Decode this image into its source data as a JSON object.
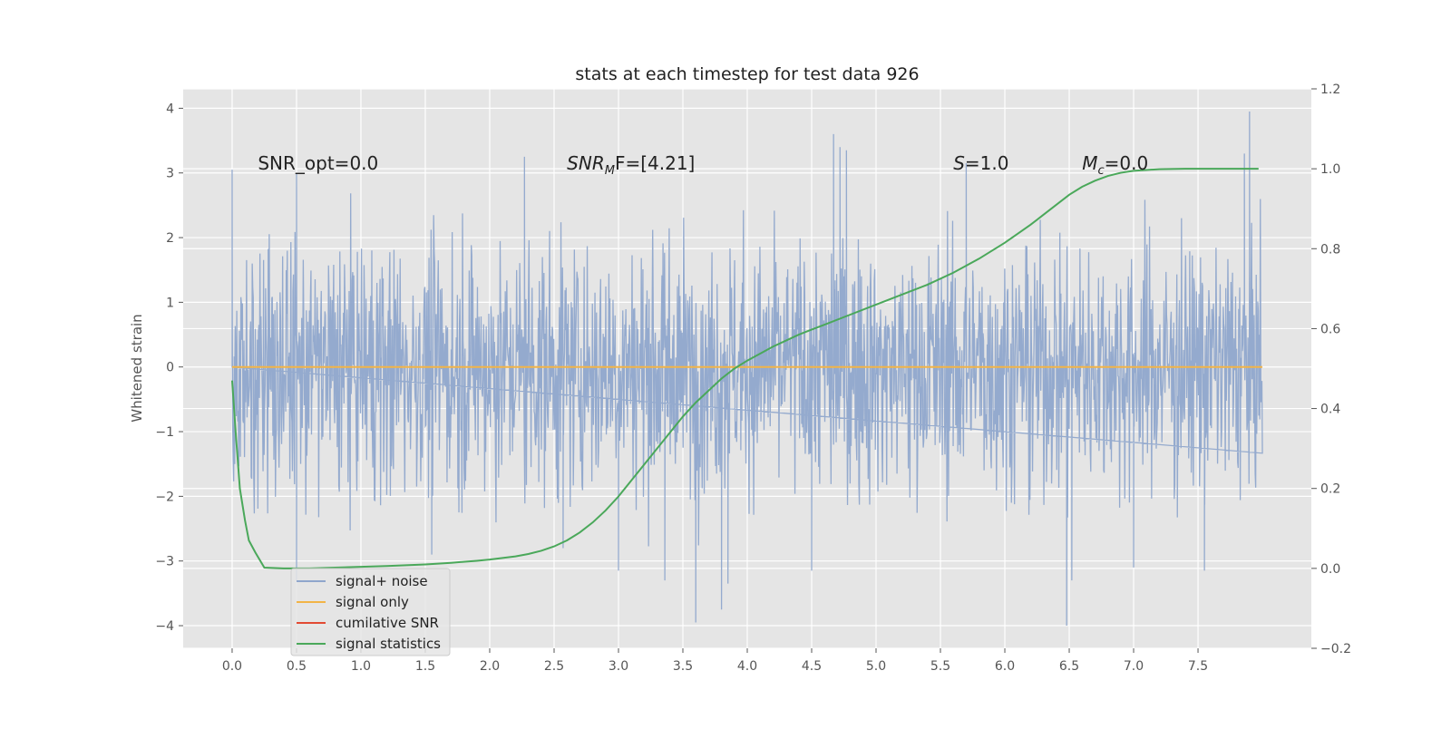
{
  "chart_data": {
    "type": "line",
    "title": "stats at each timestep for test data 926",
    "xlabel": "",
    "ylabel": "Whitened strain",
    "y2label": "",
    "xlim": [
      -0.38,
      8.38
    ],
    "ylim": [
      -4.35,
      4.3
    ],
    "y2lim": [
      -0.2,
      1.2
    ],
    "grid": true,
    "legend_placement": "lower-left",
    "x_ticks": [
      "0.0",
      "0.5",
      "1.0",
      "1.5",
      "2.0",
      "2.5",
      "3.0",
      "3.5",
      "4.0",
      "4.5",
      "5.0",
      "5.5",
      "6.0",
      "6.5",
      "7.0",
      "7.5"
    ],
    "y_ticks": [
      "4",
      "3",
      "2",
      "1",
      "0",
      "−1",
      "−2",
      "−3",
      "−4"
    ],
    "y2_ticks": [
      "1.2",
      "1.0",
      "0.8",
      "0.6",
      "0.4",
      "0.2",
      "0.0",
      "−0.2"
    ],
    "annotations": [
      {
        "id": "snr_opt",
        "text": "SNR_opt=0.0",
        "x": 0.2,
        "y": 3.05
      },
      {
        "id": "snr_mf",
        "text_main": "SNR",
        "text_sub": "M",
        "text_rest": "F=[4.21]",
        "x": 2.6,
        "y": 3.05
      },
      {
        "id": "s",
        "text_italic": "S",
        "text_rest": "=1.0",
        "x": 5.6,
        "y": 3.05
      },
      {
        "id": "mc",
        "text_italic": "M",
        "text_sub": "c",
        "text_rest": "=0.0",
        "x": 6.6,
        "y": 3.05
      }
    ],
    "series": [
      {
        "name": "signal+ noise",
        "color": "#8fa6cc",
        "axis": "left",
        "description_stats": {
          "x_start": 0.0,
          "x_end": 8.0,
          "n_points": 2000,
          "core_abs_max": 2.9,
          "spikes": [
            [
              0.0,
              3.05
            ],
            [
              0.02,
              -1.5
            ],
            [
              0.5,
              3.0
            ],
            [
              0.5,
              -3.3
            ],
            [
              1.55,
              -2.9
            ],
            [
              2.27,
              3.25
            ],
            [
              2.57,
              -2.8
            ],
            [
              3.0,
              -3.15
            ],
            [
              3.36,
              -3.3
            ],
            [
              3.6,
              -3.95
            ],
            [
              3.8,
              -3.75
            ],
            [
              3.85,
              -3.35
            ],
            [
              4.67,
              3.6
            ],
            [
              4.72,
              3.4
            ],
            [
              4.77,
              3.35
            ],
            [
              4.5,
              -3.15
            ],
            [
              5.7,
              3.15
            ],
            [
              6.48,
              -4.0
            ],
            [
              6.52,
              -3.3
            ],
            [
              7.55,
              -3.15
            ],
            [
              7.9,
              3.95
            ],
            [
              7.86,
              3.3
            ],
            [
              7.0,
              -3.1
            ]
          ]
        }
      },
      {
        "name": "signal only",
        "color": "#f2b447",
        "axis": "left",
        "x": [
          0.0,
          8.0
        ],
        "y": [
          0.0,
          0.0
        ]
      },
      {
        "name": "cumilative SNR",
        "color": "#e24a33",
        "axis": "left",
        "x": [],
        "y": []
      },
      {
        "name": "signal statistics",
        "color": "#4aa85a",
        "axis": "right",
        "x": [
          0.0,
          0.03,
          0.06,
          0.1,
          0.13,
          0.18,
          0.25,
          0.4,
          0.6,
          0.8,
          1.0,
          1.2,
          1.5,
          1.7,
          1.9,
          2.0,
          2.2,
          2.3,
          2.4,
          2.5,
          2.6,
          2.7,
          2.8,
          2.9,
          3.0,
          3.1,
          3.2,
          3.3,
          3.4,
          3.5,
          3.6,
          3.7,
          3.8,
          3.9,
          4.0,
          4.2,
          4.4,
          4.6,
          4.8,
          5.0,
          5.2,
          5.4,
          5.6,
          5.8,
          6.0,
          6.2,
          6.3,
          6.4,
          6.5,
          6.6,
          6.7,
          6.8,
          6.9,
          7.0,
          7.2,
          7.4,
          7.6,
          7.8,
          7.97
        ],
        "y": [
          0.47,
          0.33,
          0.2,
          0.12,
          0.07,
          0.04,
          0.002,
          0.0,
          0.0,
          0.002,
          0.004,
          0.006,
          0.01,
          0.014,
          0.019,
          0.022,
          0.03,
          0.036,
          0.044,
          0.055,
          0.07,
          0.09,
          0.115,
          0.145,
          0.18,
          0.22,
          0.26,
          0.3,
          0.34,
          0.38,
          0.415,
          0.445,
          0.475,
          0.5,
          0.52,
          0.555,
          0.585,
          0.61,
          0.635,
          0.66,
          0.685,
          0.71,
          0.74,
          0.775,
          0.815,
          0.86,
          0.885,
          0.91,
          0.935,
          0.955,
          0.97,
          0.982,
          0.99,
          0.995,
          0.999,
          1.0,
          1.0,
          1.0,
          1.0
        ]
      }
    ],
    "legend": [
      {
        "label": "signal+ noise",
        "color": "#8fa6cc"
      },
      {
        "label": "signal only",
        "color": "#f2b447"
      },
      {
        "label": "cumilative SNR",
        "color": "#e24a33"
      },
      {
        "label": "signal statistics",
        "color": "#4aa85a"
      }
    ]
  }
}
